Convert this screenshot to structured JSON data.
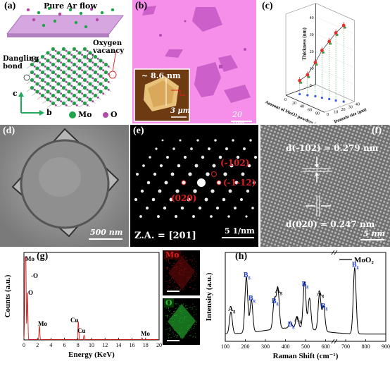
{
  "panel_a": {
    "label": "(a)",
    "flow": "Pure Ar flow",
    "oxygen_vacancy": "Oxygen vacancy",
    "dangling_bond": "Dangling bond",
    "axis_c": "c",
    "axis_b": "b",
    "legend_mo": "Mo",
    "legend_o": "O",
    "colors": {
      "mo": "#1fa64b",
      "o": "#b24aa8",
      "substrate": "#d6a6e0"
    }
  },
  "panel_b": {
    "label": "(b)",
    "inset_thickness": "~ 8.6 nm",
    "inset_scale": "3 μm",
    "scale": "20 μm",
    "colors": {
      "background": "#f58fea",
      "flake": "#cc5fc9"
    }
  },
  "panel_d": {
    "label": "(d)",
    "scale": "500 nm"
  },
  "panel_e": {
    "label": "(e)",
    "spots": [
      "(-102)",
      "(-1-12)",
      "(020)"
    ],
    "zone_axis": "Z.A. = [201]",
    "scale": "5 1/nm"
  },
  "panel_f": {
    "label": "(f)",
    "d1": "d(-102) = 0.279 nm",
    "d2": "d(020) = 0.247 nm",
    "scale": "5 nm"
  },
  "panel_g_map": {
    "mo_label": "Mo",
    "o_label": "O",
    "colors": {
      "mo": "#d01818",
      "o": "#2fc02f"
    }
  },
  "chart_data": [
    {
      "panel": "(c)",
      "type": "scatter",
      "xlabel": "Amount of MoO3 powders (mg)",
      "ylabel": "Thickness (nm)",
      "zlabel": "Domain size (μm)",
      "x_ticks": [
        "0",
        "20",
        "40",
        "60",
        "80"
      ],
      "z_ticks": [
        "0",
        "10",
        "20",
        "30",
        "40"
      ],
      "y_ticks": [
        "0",
        "10",
        "20",
        "30",
        "40"
      ],
      "points": [
        {
          "mass": 10,
          "thickness": 8,
          "size": 15
        },
        {
          "mass": 20,
          "thickness": 12,
          "size": 20
        },
        {
          "mass": 30,
          "thickness": 20,
          "size": 25
        },
        {
          "mass": 40,
          "thickness": 28,
          "size": 28
        },
        {
          "mass": 50,
          "thickness": 34,
          "size": 32
        },
        {
          "mass": 60,
          "thickness": 40,
          "size": 35
        },
        {
          "mass": 70,
          "thickness": 45,
          "size": 40
        }
      ],
      "colors": {
        "point": "#e8302a",
        "projection": "#3a5ad8",
        "size": "#2aa84a"
      }
    },
    {
      "panel": "(g)",
      "type": "line",
      "xlabel": "Energy (KeV)",
      "ylabel": "Counts (a.u.)",
      "x_ticks": [
        "0",
        "2",
        "4",
        "6",
        "8",
        "10",
        "12",
        "14",
        "16",
        "18",
        "20"
      ],
      "xlim": [
        0,
        20
      ],
      "annotations": [
        {
          "text": "Mo",
          "x": 0.3
        },
        {
          "text": "O",
          "x": 0.55
        },
        {
          "text": "O",
          "x": 0.2
        },
        {
          "text": "Mo",
          "x": 2.3
        },
        {
          "text": "Cu",
          "x": 8.05
        },
        {
          "text": "Cu",
          "x": 8.9
        },
        {
          "text": "Mo",
          "x": 17.5
        }
      ],
      "peaks": [
        {
          "x": 0.18,
          "height": 1.0
        },
        {
          "x": 0.28,
          "height": 0.82
        },
        {
          "x": 0.52,
          "height": 0.58
        },
        {
          "x": 2.29,
          "height": 0.17
        },
        {
          "x": 8.05,
          "height": 0.22
        },
        {
          "x": 8.9,
          "height": 0.05
        },
        {
          "x": 17.48,
          "height": 0.02
        }
      ],
      "color": "#d42020"
    },
    {
      "panel": "(h)",
      "type": "line",
      "xlabel": "Raman Shift (cm⁻¹)",
      "ylabel": "Intensity (a.u.)",
      "legend": "MoO₂",
      "x_ticks": [
        "100",
        "200",
        "300",
        "400",
        "500",
        "600",
        "700",
        "800",
        "900"
      ],
      "xlim": [
        100,
        900
      ],
      "modes": [
        {
          "label": "A",
          "sub": "g",
          "x": 128,
          "color": "#000000"
        },
        {
          "label": "B",
          "sub": "g",
          "x": 205,
          "color": "#1f3fd0"
        },
        {
          "label": "B",
          "sub": "g",
          "x": 230,
          "color": "#1f3fd0"
        },
        {
          "label": "B",
          "sub": "g",
          "x": 345,
          "color": "#1f3fd0"
        },
        {
          "label": "A",
          "sub": "g",
          "x": 362,
          "color": "#000000"
        },
        {
          "label": "B",
          "sub": "g",
          "x": 425,
          "color": "#1f3fd0"
        },
        {
          "label": "A",
          "sub": "g",
          "x": 458,
          "color": "#000000"
        },
        {
          "label": "B",
          "sub": "g",
          "x": 495,
          "color": "#1f3fd0"
        },
        {
          "label": "A",
          "sub": "g",
          "x": 570,
          "color": "#000000"
        },
        {
          "label": "B",
          "sub": "g",
          "x": 590,
          "color": "#1f3fd0"
        },
        {
          "label": "B",
          "sub": "g",
          "x": 745,
          "color": "#1f3fd0"
        }
      ],
      "peaks": [
        {
          "x": 128,
          "height": 0.28
        },
        {
          "x": 205,
          "height": 0.72
        },
        {
          "x": 230,
          "height": 0.42
        },
        {
          "x": 345,
          "height": 0.38
        },
        {
          "x": 362,
          "height": 0.52
        },
        {
          "x": 425,
          "height": 0.08
        },
        {
          "x": 458,
          "height": 0.15
        },
        {
          "x": 495,
          "height": 0.6
        },
        {
          "x": 520,
          "height": 0.4
        },
        {
          "x": 570,
          "height": 0.48
        },
        {
          "x": 590,
          "height": 0.32
        },
        {
          "x": 745,
          "height": 0.85
        }
      ],
      "color": "#000000"
    }
  ]
}
